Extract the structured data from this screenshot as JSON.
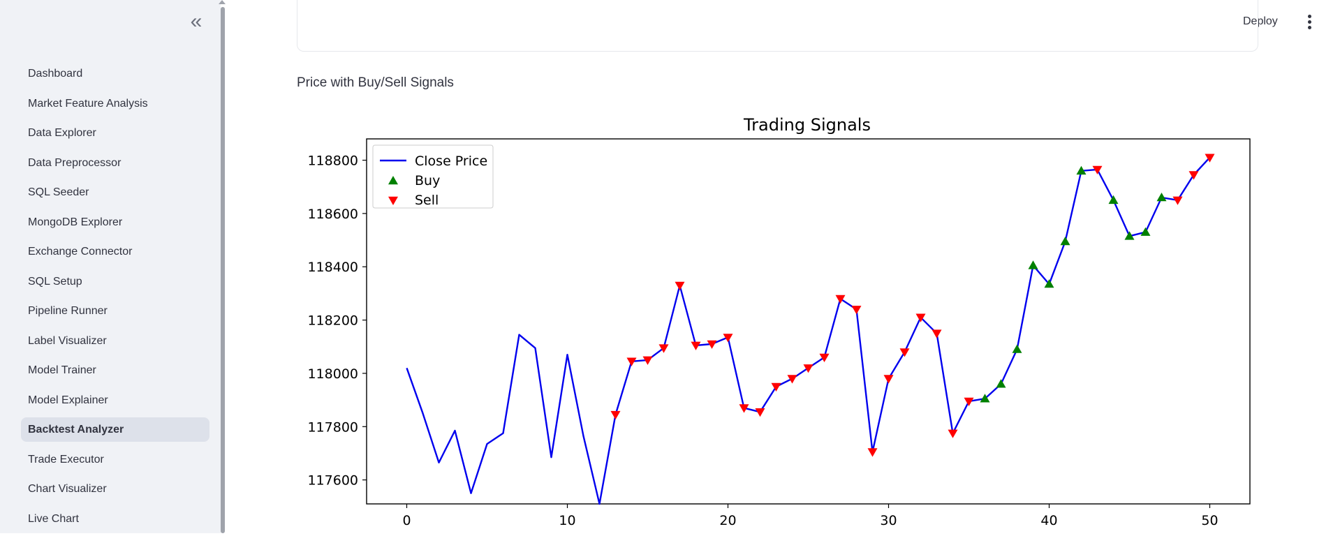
{
  "sidebar": {
    "collapse_icon": "«",
    "items": [
      {
        "label": "Dashboard"
      },
      {
        "label": "Market Feature Analysis"
      },
      {
        "label": "Data Explorer"
      },
      {
        "label": "Data Preprocessor"
      },
      {
        "label": "SQL Seeder"
      },
      {
        "label": "MongoDB Explorer"
      },
      {
        "label": "Exchange Connector"
      },
      {
        "label": "SQL Setup"
      },
      {
        "label": "Pipeline Runner"
      },
      {
        "label": "Label Visualizer"
      },
      {
        "label": "Model Trainer"
      },
      {
        "label": "Model Explainer"
      },
      {
        "label": "Backtest Analyzer",
        "active": true
      },
      {
        "label": "Trade Executor"
      },
      {
        "label": "Chart Visualizer"
      },
      {
        "label": "Live Chart"
      }
    ]
  },
  "header": {
    "deploy_label": "Deploy",
    "menu_icon": "kebab-menu-icon"
  },
  "main": {
    "chart_caption": "Price with Buy/Sell Signals"
  },
  "colors": {
    "line": "#0000ee",
    "buy": "#008000",
    "sell": "#ff0000",
    "sidebar_bg": "#f0f2f6"
  },
  "chart_data": {
    "type": "line",
    "title": "Trading Signals",
    "xlabel": "",
    "ylabel": "",
    "xlim": [
      -2.5,
      52.5
    ],
    "ylim": [
      117510,
      118880
    ],
    "x_ticks": [
      0,
      10,
      20,
      30,
      40,
      50
    ],
    "y_ticks": [
      117600,
      117800,
      118000,
      118200,
      118400,
      118600,
      118800
    ],
    "grid": false,
    "legend_position": "top-left",
    "series": [
      {
        "name": "Close Price",
        "x": [
          0,
          1,
          2,
          3,
          4,
          5,
          6,
          7,
          8,
          9,
          10,
          11,
          12,
          13,
          14,
          15,
          16,
          17,
          18,
          19,
          20,
          21,
          22,
          23,
          24,
          25,
          26,
          27,
          28,
          29,
          30,
          31,
          32,
          33,
          34,
          35,
          36,
          37,
          38,
          39,
          40,
          41,
          42,
          43,
          44,
          45,
          46,
          47,
          48,
          49,
          50
        ],
        "values": [
          118020,
          117850,
          117665,
          117785,
          117550,
          117735,
          117775,
          118145,
          118095,
          117685,
          118070,
          117765,
          117510,
          117845,
          118045,
          118050,
          118095,
          118330,
          118105,
          118110,
          118135,
          117870,
          117855,
          117950,
          117980,
          118020,
          118060,
          118280,
          118240,
          117705,
          117980,
          118080,
          118210,
          118150,
          117775,
          117895,
          117905,
          117960,
          118090,
          118405,
          118335,
          118495,
          118760,
          118765,
          118650,
          118515,
          118530,
          118660,
          118650,
          118745,
          118810
        ]
      },
      {
        "name": "Buy",
        "x": [
          36,
          37,
          38,
          39,
          40,
          41,
          42,
          44,
          45,
          46,
          47
        ],
        "values": [
          117905,
          117960,
          118090,
          118405,
          118335,
          118495,
          118760,
          118650,
          118515,
          118530,
          118660
        ]
      },
      {
        "name": "Sell",
        "x": [
          13,
          14,
          15,
          16,
          17,
          18,
          19,
          20,
          21,
          22,
          23,
          24,
          25,
          26,
          27,
          28,
          29,
          30,
          31,
          32,
          33,
          34,
          35,
          43,
          48,
          49,
          50
        ],
        "values": [
          117845,
          118045,
          118050,
          118095,
          118330,
          118105,
          118110,
          118135,
          117870,
          117855,
          117950,
          117980,
          118020,
          118060,
          118280,
          118240,
          117705,
          117980,
          118080,
          118210,
          118150,
          117775,
          117895,
          118765,
          118650,
          118745,
          118810
        ]
      }
    ]
  }
}
